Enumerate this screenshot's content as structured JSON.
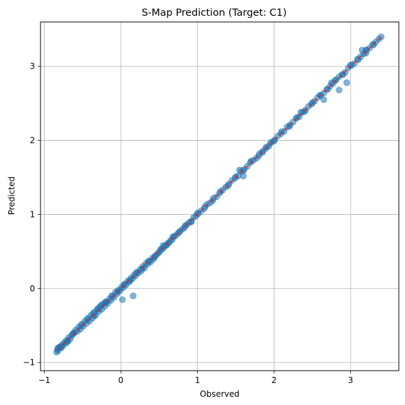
{
  "chart_data": {
    "type": "scatter",
    "title": "S-Map Prediction (Target: C1)",
    "xlabel": "Observed",
    "ylabel": "Predicted",
    "xlim": [
      -1.05,
      3.63
    ],
    "ylim": [
      -1.11,
      3.6
    ],
    "xticks": [
      -1,
      0,
      1,
      2,
      3
    ],
    "yticks": [
      -1,
      0,
      1,
      2,
      3
    ],
    "xtick_labels": [
      "−1",
      "0",
      "1",
      "2",
      "3"
    ],
    "ytick_labels": [
      "−1",
      "0",
      "1",
      "2",
      "3"
    ],
    "grid": true,
    "reference_line": {
      "style": "dashed",
      "color": "#d62728",
      "from": [
        -0.83,
        -0.83
      ],
      "to": [
        3.4,
        3.4
      ]
    },
    "series": [
      {
        "color": "#1f77b4",
        "x": [
          -0.84,
          -0.83,
          -0.82,
          -0.8,
          -0.79,
          -0.77,
          -0.76,
          -0.74,
          -0.72,
          -0.71,
          -0.69,
          -0.68,
          -0.66,
          -0.64,
          -0.63,
          -0.61,
          -0.59,
          -0.57,
          -0.55,
          -0.53,
          -0.51,
          -0.49,
          -0.47,
          -0.45,
          -0.43,
          -0.41,
          -0.39,
          -0.37,
          -0.35,
          -0.33,
          -0.31,
          -0.29,
          -0.27,
          -0.25,
          -0.23,
          -0.21,
          -0.19,
          -0.17,
          -0.15,
          -0.13,
          -0.11,
          -0.09,
          -0.07,
          -0.05,
          -0.03,
          -0.01,
          0.01,
          0.03,
          0.05,
          0.07,
          0.09,
          0.11,
          0.13,
          0.15,
          0.17,
          0.19,
          0.21,
          0.23,
          0.25,
          0.27,
          0.29,
          0.31,
          0.33,
          0.35,
          0.37,
          0.39,
          0.41,
          0.43,
          0.45,
          0.47,
          0.49,
          0.51,
          0.53,
          0.55,
          0.57,
          0.59,
          0.61,
          0.63,
          0.65,
          0.67,
          0.69,
          0.71,
          0.74,
          0.77,
          0.8,
          0.83,
          0.86,
          0.89,
          0.92,
          0.95,
          0.98,
          1.01,
          1.05,
          1.09,
          1.13,
          1.17,
          1.21,
          1.25,
          1.29,
          1.33,
          1.37,
          1.41,
          1.45,
          1.49,
          1.53,
          1.57,
          1.61,
          1.65,
          1.69,
          1.73,
          1.77,
          1.81,
          1.85,
          1.89,
          1.93,
          1.97,
          2.01,
          2.05,
          2.09,
          2.13,
          2.17,
          2.21,
          2.25,
          2.29,
          2.33,
          2.37,
          2.41,
          2.45,
          2.49,
          2.53,
          2.57,
          2.61,
          2.65,
          2.69,
          2.73,
          2.77,
          2.81,
          2.85,
          2.89,
          2.93,
          2.97,
          3.01,
          3.05,
          3.09,
          3.13,
          3.17,
          3.21,
          3.25,
          3.29,
          3.33,
          3.37,
          3.4,
          -0.82,
          -0.78,
          -0.7,
          -0.62,
          -0.52,
          -0.44,
          -0.36,
          -0.28,
          -0.2,
          -0.12,
          -0.04,
          0.04,
          0.12,
          0.2,
          0.28,
          0.36,
          0.44,
          0.52,
          0.6,
          0.68,
          0.76,
          0.84,
          0.92,
          1.0,
          1.1,
          1.2,
          1.3,
          1.4,
          1.5,
          1.6,
          1.7,
          1.8,
          1.9,
          2.0,
          2.1,
          2.2,
          2.3,
          2.4,
          2.5,
          2.6,
          2.7,
          2.8,
          2.9,
          3.0,
          3.1,
          3.2,
          3.3,
          -0.35,
          -0.3,
          -0.25,
          -0.2,
          0.02,
          0.16,
          0.55,
          1.55,
          1.6,
          1.85,
          1.95,
          2.35,
          2.65,
          2.75,
          2.85,
          2.95,
          3.15,
          3.2
        ],
        "y": [
          -0.86,
          -0.82,
          -0.84,
          -0.79,
          -0.8,
          -0.76,
          -0.78,
          -0.73,
          -0.74,
          -0.7,
          -0.71,
          -0.66,
          -0.68,
          -0.63,
          -0.62,
          -0.6,
          -0.56,
          -0.58,
          -0.52,
          -0.55,
          -0.48,
          -0.51,
          -0.44,
          -0.47,
          -0.4,
          -0.44,
          -0.36,
          -0.4,
          -0.32,
          -0.36,
          -0.28,
          -0.31,
          -0.24,
          -0.28,
          -0.21,
          -0.24,
          -0.18,
          -0.2,
          -0.14,
          -0.16,
          -0.1,
          -0.12,
          -0.05,
          -0.07,
          -0.02,
          -0.03,
          0.02,
          0.01,
          0.06,
          0.05,
          0.1,
          0.09,
          0.14,
          0.13,
          0.18,
          0.17,
          0.22,
          0.21,
          0.26,
          0.24,
          0.3,
          0.28,
          0.34,
          0.33,
          0.37,
          0.36,
          0.41,
          0.4,
          0.44,
          0.46,
          0.48,
          0.5,
          0.53,
          0.54,
          0.57,
          0.58,
          0.61,
          0.62,
          0.65,
          0.66,
          0.7,
          0.71,
          0.74,
          0.77,
          0.8,
          0.82,
          0.86,
          0.89,
          0.91,
          0.96,
          0.98,
          1.01,
          1.05,
          1.08,
          1.14,
          1.16,
          1.22,
          1.24,
          1.29,
          1.33,
          1.37,
          1.41,
          1.46,
          1.49,
          1.52,
          1.58,
          1.61,
          1.65,
          1.7,
          1.73,
          1.76,
          1.82,
          1.85,
          1.89,
          1.92,
          1.98,
          2.01,
          2.06,
          2.09,
          2.12,
          2.18,
          2.21,
          2.25,
          2.3,
          2.32,
          2.38,
          2.41,
          2.46,
          2.49,
          2.53,
          2.58,
          2.61,
          2.64,
          2.69,
          2.73,
          2.77,
          2.82,
          2.86,
          2.89,
          2.92,
          2.98,
          3.01,
          3.04,
          3.1,
          3.13,
          3.17,
          3.22,
          3.25,
          3.3,
          3.33,
          3.37,
          3.4,
          -0.8,
          -0.8,
          -0.72,
          -0.6,
          -0.5,
          -0.42,
          -0.34,
          -0.26,
          -0.19,
          -0.1,
          -0.04,
          0.05,
          0.11,
          0.21,
          0.27,
          0.37,
          0.43,
          0.53,
          0.59,
          0.7,
          0.76,
          0.85,
          0.9,
          1.02,
          1.11,
          1.19,
          1.31,
          1.39,
          1.51,
          1.59,
          1.72,
          1.79,
          1.91,
          1.99,
          2.12,
          2.19,
          2.31,
          2.39,
          2.51,
          2.61,
          2.69,
          2.81,
          2.89,
          3.02,
          3.09,
          3.22,
          3.29,
          -0.37,
          -0.28,
          -0.22,
          -0.18,
          -0.15,
          -0.1,
          0.58,
          1.6,
          1.52,
          1.84,
          1.96,
          2.38,
          2.55,
          2.78,
          2.68,
          2.78,
          3.22,
          3.18
        ]
      }
    ]
  }
}
